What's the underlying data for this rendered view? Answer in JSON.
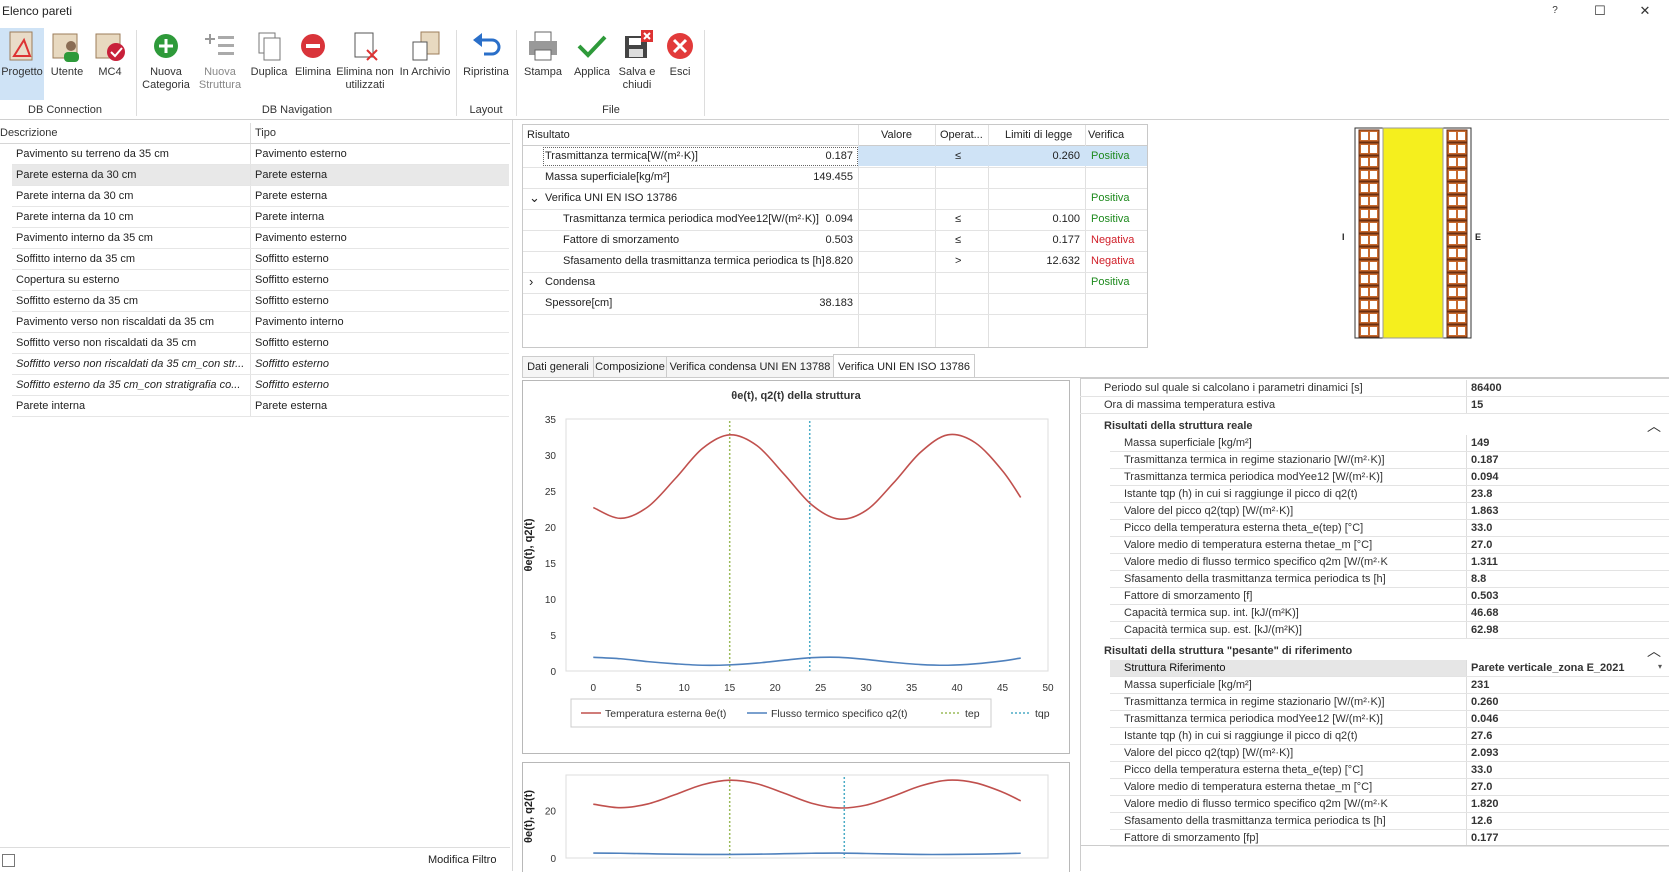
{
  "window": {
    "title": "Elenco pareti",
    "help": "?",
    "maximize": "☐",
    "close": "✕"
  },
  "ribbon": {
    "buttons": [
      {
        "label1": "Progetto",
        "label2": ""
      },
      {
        "label1": "Utente",
        "label2": ""
      },
      {
        "label1": "MC4",
        "label2": ""
      },
      {
        "label1": "Nuova",
        "label2": "Categoria"
      },
      {
        "label1": "Nuova",
        "label2": "Struttura"
      },
      {
        "label1": "Duplica",
        "label2": ""
      },
      {
        "label1": "Elimina",
        "label2": ""
      },
      {
        "label1": "Elimina non",
        "label2": "utilizzati"
      },
      {
        "label1": "In Archivio",
        "label2": ""
      },
      {
        "label1": "Ripristina",
        "label2": ""
      },
      {
        "label1": "Stampa",
        "label2": ""
      },
      {
        "label1": "Applica",
        "label2": ""
      },
      {
        "label1": "Salva e",
        "label2": "chiudi"
      },
      {
        "label1": "Esci",
        "label2": ""
      }
    ],
    "groups": [
      "DB Connection",
      "DB Navigation",
      "Layout",
      "File"
    ]
  },
  "list": {
    "headers": [
      "Descrizione",
      "Tipo"
    ],
    "rows": [
      {
        "desc": "Pavimento su terreno da 35 cm",
        "tipo": "Pavimento esterno"
      },
      {
        "desc": "Parete esterna da 30 cm",
        "tipo": "Parete esterna"
      },
      {
        "desc": "Parete interna da 30 cm",
        "tipo": "Parete esterna"
      },
      {
        "desc": "Parete interna da 10 cm",
        "tipo": "Parete interna"
      },
      {
        "desc": "Pavimento interno da 35 cm",
        "tipo": "Pavimento esterno"
      },
      {
        "desc": "Soffitto interno da 35 cm",
        "tipo": "Soffitto esterno"
      },
      {
        "desc": "Copertura su esterno",
        "tipo": "Soffitto esterno"
      },
      {
        "desc": "Soffitto esterno da 35 cm",
        "tipo": "Soffitto esterno"
      },
      {
        "desc": "Pavimento verso non riscaldati da 35 cm",
        "tipo": "Pavimento interno"
      },
      {
        "desc": "Soffitto verso non riscaldati da 35 cm",
        "tipo": "Soffitto esterno"
      },
      {
        "desc": "Soffitto verso non riscaldati da 35 cm_con str...",
        "tipo": "Soffitto esterno"
      },
      {
        "desc": "Soffitto esterno da 35 cm_con stratigrafia co...",
        "tipo": "Soffitto esterno"
      },
      {
        "desc": "Parete interna",
        "tipo": "Parete esterna"
      }
    ],
    "filter_label": "Modifica Filtro"
  },
  "results": {
    "headers": [
      "Risultato",
      "Valore",
      "Operat...",
      "Limiti di legge",
      "Verifica"
    ],
    "rows": [
      {
        "name": "Trasmittanza termica[W/(m²·K)]",
        "value": "0.187",
        "op": "≤",
        "limit": "0.260",
        "verifica": "Positiva"
      },
      {
        "name": "Massa superficiale[kg/m²]",
        "value": "149.455",
        "op": "",
        "limit": "",
        "verifica": ""
      },
      {
        "name": "Verifica UNI EN ISO 13786",
        "value": "",
        "op": "",
        "limit": "",
        "verifica": "Positiva",
        "expander": "⌄"
      },
      {
        "name": "Trasmittanza termica periodica modYee12[W/(m²·K)]",
        "value": "0.094",
        "op": "≤",
        "limit": "0.100",
        "verifica": "Positiva"
      },
      {
        "name": "Fattore di smorzamento",
        "value": "0.503",
        "op": "≤",
        "limit": "0.177",
        "verifica": "Negativa"
      },
      {
        "name": "Sfasamento della trasmittanza termica periodica ts [h]",
        "value": "8.820",
        "op": ">",
        "limit": "12.632",
        "verifica": "Negativa"
      },
      {
        "name": "Condensa",
        "value": "",
        "op": "",
        "limit": "",
        "verifica": "Positiva",
        "expander": "›"
      },
      {
        "name": "Spessore[cm]",
        "value": "38.183",
        "op": "",
        "limit": "",
        "verifica": ""
      }
    ]
  },
  "wall_diagram": {
    "label_left": "I",
    "label_right": "E"
  },
  "tabs": [
    "Dati generali",
    "Composizione",
    "Verifica condensa  UNI EN 13788",
    "Verifica UNI EN ISO 13786"
  ],
  "chart_data": [
    {
      "type": "line",
      "title": "θe(t), q2(t) della struttura",
      "ylabel": "θe(t), q2(t)",
      "xlim": [
        -3,
        50
      ],
      "ylim": [
        0,
        35
      ],
      "xticks": [
        0,
        5,
        10,
        15,
        20,
        25,
        30,
        35,
        40,
        45,
        50
      ],
      "yticks": [
        0,
        5,
        10,
        15,
        20,
        25,
        30,
        35
      ],
      "series": [
        {
          "name": "Temperatura esterna θe(t)",
          "color": "#c0504d",
          "x": [
            0,
            3,
            6,
            9,
            12,
            15,
            18,
            21,
            24,
            27,
            30,
            33,
            36,
            39,
            42,
            45,
            47
          ],
          "y": [
            22.7,
            21.2,
            22.8,
            26.7,
            30.9,
            32.8,
            31.3,
            27.3,
            23.1,
            21.1,
            22.3,
            26.1,
            30.4,
            32.8,
            31.7,
            27.8,
            24.1
          ]
        },
        {
          "name": "Flusso termico specifico q2(t)",
          "color": "#4f81bd",
          "x": [
            0,
            3,
            6,
            9,
            12,
            15,
            18,
            21,
            24,
            27,
            30,
            33,
            36,
            39,
            42,
            45,
            47
          ],
          "y": [
            1.9,
            1.7,
            1.3,
            1.0,
            0.8,
            0.85,
            1.1,
            1.5,
            1.85,
            1.9,
            1.6,
            1.2,
            0.9,
            0.8,
            1.0,
            1.4,
            1.8
          ]
        }
      ],
      "vlines": [
        {
          "name": "tep",
          "x": 15,
          "color": "#9bbb59"
        },
        {
          "name": "tqp",
          "x": 23.8,
          "color": "#4bacc6"
        }
      ]
    },
    {
      "type": "line",
      "ylabel": "θe(t), q2(t)",
      "xlim": [
        -3,
        50
      ],
      "ylim": [
        0,
        35
      ],
      "yticks": [
        0,
        20
      ],
      "series": [
        {
          "name": "Temperatura esterna θe(t)",
          "color": "#c0504d",
          "x": [
            0,
            3,
            6,
            9,
            12,
            15,
            18,
            21,
            24,
            27,
            30,
            33,
            36,
            39,
            42,
            45,
            47
          ],
          "y": [
            22.7,
            21.2,
            22.8,
            26.7,
            30.9,
            32.8,
            31.3,
            27.3,
            23.1,
            21.1,
            22.3,
            26.1,
            30.4,
            32.8,
            31.7,
            27.8,
            24.1
          ]
        },
        {
          "name": "Flusso termico specifico q2(t)",
          "color": "#4f81bd",
          "x": [
            0,
            3,
            6,
            9,
            12,
            15,
            18,
            21,
            24,
            27,
            30,
            33,
            36,
            39,
            42,
            45,
            47
          ],
          "y": [
            2.1,
            2.0,
            1.8,
            1.6,
            1.5,
            1.5,
            1.6,
            1.8,
            2.0,
            2.1,
            1.9,
            1.7,
            1.5,
            1.5,
            1.6,
            1.8,
            2.0
          ]
        }
      ],
      "vlines": [
        {
          "name": "tep",
          "x": 15,
          "color": "#9bbb59"
        },
        {
          "name": "tqp",
          "x": 27.6,
          "color": "#4bacc6"
        }
      ]
    }
  ],
  "props": {
    "top": [
      {
        "label": "Periodo sul quale si calcolano i parametri dinamici [s]",
        "value": "86400"
      },
      {
        "label": "Ora di massima temperatura estiva",
        "value": "15"
      }
    ],
    "cat1": "Risultati della struttura reale",
    "real": [
      {
        "label": "Massa superficiale [kg/m²]",
        "value": "149"
      },
      {
        "label": "Trasmittanza termica in regime stazionario [W/(m²·K)]",
        "value": "0.187"
      },
      {
        "label": "Trasmittanza termica periodica modYee12 [W/(m²·K)]",
        "value": "0.094"
      },
      {
        "label": "Istante tqp (h) in cui si raggiunge il picco di q2(t)",
        "value": "23.8"
      },
      {
        "label": "Valore del picco q2(tqp) [W/(m²·K)]",
        "value": "1.863"
      },
      {
        "label": "Picco della temperatura esterna theta_e(tep) [°C]",
        "value": "33.0"
      },
      {
        "label": "Valore medio di temperatura esterna thetae_m [°C]",
        "value": "27.0"
      },
      {
        "label": "Valore medio di flusso termico specifico q2m [W/(m²·K",
        "value": "1.311"
      },
      {
        "label": "Sfasamento della trasmittanza termica periodica ts [h]",
        "value": "8.8"
      },
      {
        "label": "Fattore di smorzamento [f]",
        "value": "0.503"
      },
      {
        "label": "Capacità termica sup. int. [kJ/(m²K)]",
        "value": "46.68"
      },
      {
        "label": "Capacità termica sup. est. [kJ/(m²K)]",
        "value": "62.98"
      }
    ],
    "cat2": "Risultati della struttura \"pesante\" di riferimento",
    "ref": [
      {
        "label": "Struttura Riferimento",
        "value": "Parete verticale_zona E_2021"
      },
      {
        "label": "Massa superficiale [kg/m²]",
        "value": "231"
      },
      {
        "label": "Trasmittanza termica in regime stazionario [W/(m²·K)]",
        "value": "0.260"
      },
      {
        "label": "Trasmittanza termica periodica modYee12 [W/(m²·K)]",
        "value": "0.046"
      },
      {
        "label": "Istante tqp (h) in cui si raggiunge il picco di q2(t)",
        "value": "27.6"
      },
      {
        "label": "Valore del picco q2(tqp) [W/(m²·K)]",
        "value": "2.093"
      },
      {
        "label": "Picco della temperatura esterna theta_e(tep) [°C]",
        "value": "33.0"
      },
      {
        "label": "Valore medio di temperatura esterna thetae_m [°C]",
        "value": "27.0"
      },
      {
        "label": "Valore medio di flusso termico specifico q2m [W/(m²·K",
        "value": "1.820"
      },
      {
        "label": "Sfasamento della trasmittanza termica periodica ts [h]",
        "value": "12.6"
      },
      {
        "label": "Fattore di smorzamento [fp]",
        "value": "0.177"
      }
    ]
  },
  "colors": {
    "positive": "#1e8a1e",
    "negative": "#d0202a",
    "selected": "#cfe3f6"
  }
}
